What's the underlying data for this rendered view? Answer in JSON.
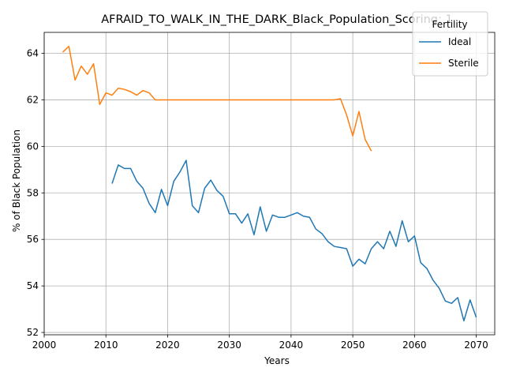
{
  "chart_data": {
    "type": "line",
    "title": "AFRAID_TO_WALK_IN_THE_DARK_Black_Population_Scoring: 1",
    "xlabel": "Years",
    "ylabel": "% of Black Population",
    "xlim": [
      2000,
      2073
    ],
    "ylim": [
      51.9,
      64.9
    ],
    "xticks": [
      2000,
      2010,
      2020,
      2030,
      2040,
      2050,
      2060,
      2070
    ],
    "yticks": [
      52,
      54,
      56,
      58,
      60,
      62,
      64
    ],
    "grid": true,
    "legend": {
      "title": "Fertility",
      "position": "top-right"
    },
    "series": [
      {
        "name": "Ideal",
        "color": "#1f77b4",
        "x": [
          2011,
          2012,
          2013,
          2014,
          2015,
          2016,
          2017,
          2018,
          2019,
          2020,
          2021,
          2022,
          2023,
          2024,
          2025,
          2026,
          2027,
          2028,
          2029,
          2030,
          2031,
          2032,
          2033,
          2034,
          2035,
          2036,
          2037,
          2038,
          2039,
          2040,
          2041,
          2042,
          2043,
          2044,
          2045,
          2046,
          2047,
          2048,
          2049,
          2050,
          2051,
          2052,
          2053,
          2054,
          2055,
          2056,
          2057,
          2058,
          2059,
          2060,
          2061,
          2062,
          2063,
          2064,
          2065,
          2066,
          2067,
          2068,
          2069,
          2070
        ],
        "y": [
          58.4,
          59.2,
          59.05,
          59.05,
          58.5,
          58.2,
          57.55,
          57.15,
          58.15,
          57.45,
          58.5,
          58.9,
          59.4,
          57.45,
          57.15,
          58.2,
          58.55,
          58.1,
          57.85,
          57.1,
          57.1,
          56.7,
          57.1,
          56.2,
          57.4,
          56.35,
          57.05,
          56.95,
          56.95,
          57.05,
          57.15,
          57.0,
          56.95,
          56.45,
          56.25,
          55.9,
          55.7,
          55.65,
          55.6,
          54.85,
          55.15,
          54.95,
          55.6,
          55.9,
          55.6,
          56.35,
          55.7,
          56.8,
          55.9,
          56.15,
          55.0,
          54.75,
          54.25,
          53.9,
          53.35,
          53.25,
          53.5,
          52.5,
          53.4,
          52.65
        ]
      },
      {
        "name": "Sterile",
        "color": "#ff7f0e",
        "x": [
          2003,
          2004,
          2005,
          2006,
          2007,
          2008,
          2009,
          2010,
          2011,
          2012,
          2013,
          2014,
          2015,
          2016,
          2017,
          2018,
          2019,
          2020,
          2021,
          2022,
          2023,
          2024,
          2025,
          2026,
          2027,
          2028,
          2029,
          2030,
          2031,
          2032,
          2033,
          2034,
          2035,
          2036,
          2037,
          2038,
          2039,
          2040,
          2041,
          2042,
          2043,
          2044,
          2045,
          2046,
          2047,
          2048,
          2049,
          2050,
          2051,
          2052,
          2053
        ],
        "y": [
          64.05,
          64.3,
          62.85,
          63.45,
          63.1,
          63.55,
          61.8,
          62.3,
          62.2,
          62.5,
          62.45,
          62.35,
          62.2,
          62.4,
          62.3,
          62.0,
          62.0,
          62.0,
          62.0,
          62.0,
          62.0,
          62.0,
          62.0,
          62.0,
          62.0,
          62.0,
          62.0,
          62.0,
          62.0,
          62.0,
          62.0,
          62.0,
          62.0,
          62.0,
          62.0,
          62.0,
          62.0,
          62.0,
          62.0,
          62.0,
          62.0,
          62.0,
          62.0,
          62.0,
          62.0,
          62.05,
          61.35,
          60.45,
          61.5,
          60.3,
          59.8
        ]
      }
    ]
  }
}
